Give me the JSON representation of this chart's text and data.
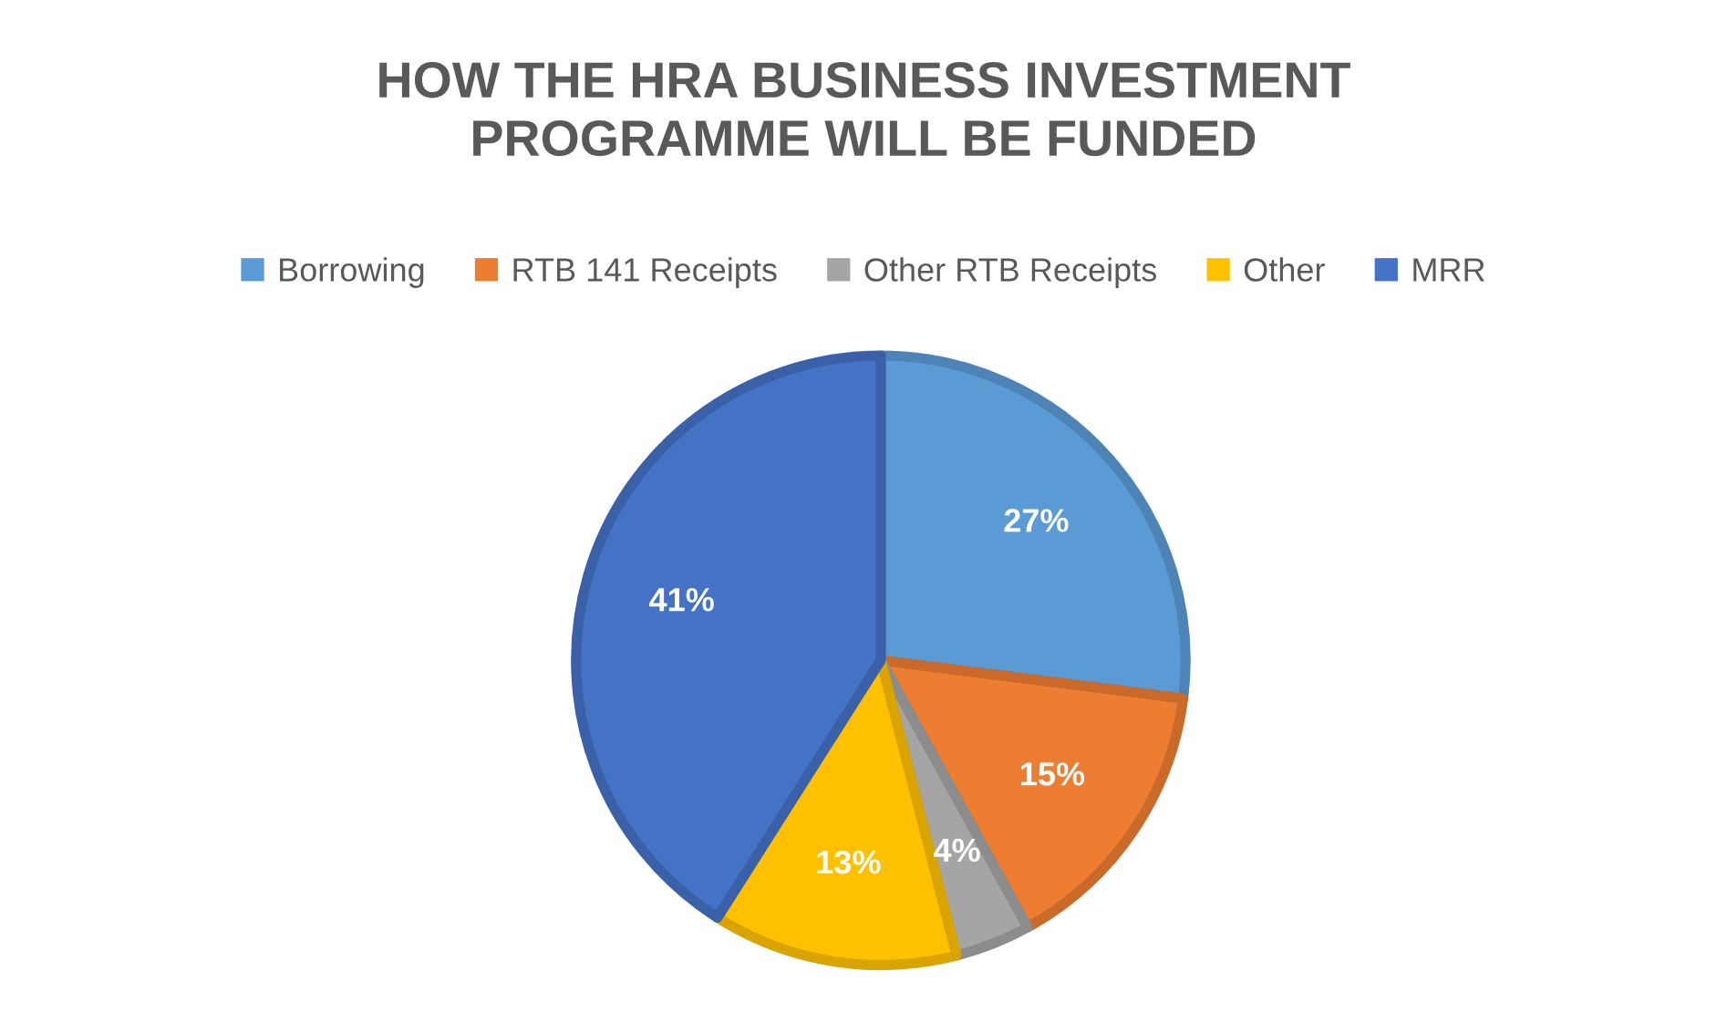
{
  "chart_data": {
    "type": "pie",
    "title": "HOW THE HRA BUSINESS INVESTMENT\nPROGRAMME WILL BE FUNDED",
    "categories": [
      "Borrowing",
      "RTB 141 Receipts",
      "Other RTB Receipts",
      "Other",
      "MRR"
    ],
    "values": [
      27,
      15,
      4,
      13,
      41
    ],
    "colors": [
      "#5b9bd5",
      "#ed7d31",
      "#a5a5a5",
      "#ffc000",
      "#4472c4"
    ],
    "value_labels": [
      "27%",
      "15%",
      "4%",
      "13%",
      "41%"
    ],
    "legend": "top"
  }
}
